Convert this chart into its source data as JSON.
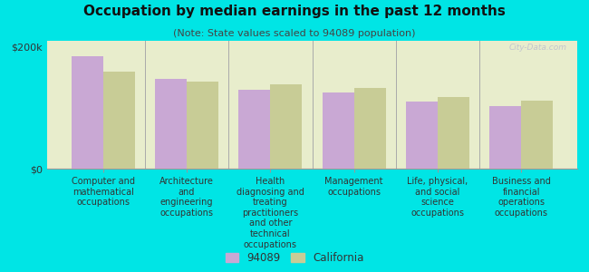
{
  "title": "Occupation by median earnings in the past 12 months",
  "subtitle": "(Note: State values scaled to 94089 population)",
  "background_outer": "#00e5e5",
  "background_plot": "#e8edcc",
  "categories": [
    "Computer and\nmathematical\noccupations",
    "Architecture\nand\nengineering\noccupations",
    "Health\ndiagnosing and\ntreating\npractitioners\nand other\ntechnical\noccupations",
    "Management\noccupations",
    "Life, physical,\nand social\nscience\noccupations",
    "Business and\nfinancial\noperations\noccupations"
  ],
  "values_94089": [
    185000,
    148000,
    130000,
    125000,
    110000,
    103000
  ],
  "values_california": [
    160000,
    143000,
    138000,
    133000,
    118000,
    112000
  ],
  "color_94089": "#c9a8d4",
  "color_california": "#c8cc96",
  "ylim": [
    0,
    210000
  ],
  "yticks": [
    0,
    200000
  ],
  "ytick_labels": [
    "$0",
    "$200k"
  ],
  "legend_labels": [
    "94089",
    "California"
  ],
  "bar_width": 0.38,
  "watermark": "City-Data.com",
  "title_fontsize": 11,
  "subtitle_fontsize": 8,
  "axis_label_fontsize": 7,
  "legend_fontsize": 8.5
}
